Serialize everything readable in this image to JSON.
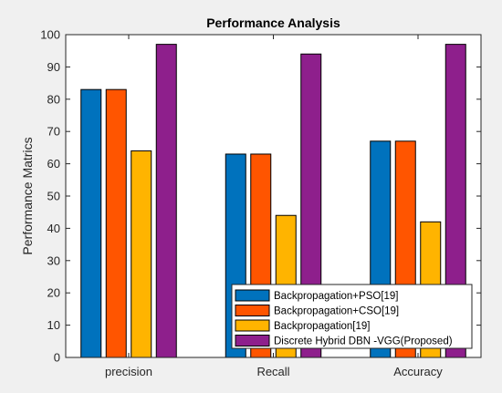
{
  "chart_data": {
    "type": "bar",
    "title": "Performance Analysis",
    "xlabel": "",
    "ylabel": "Performance Matrics",
    "categories": [
      "precision",
      "Recall",
      "Accuracy"
    ],
    "ylim": [
      0,
      100
    ],
    "yticks": [
      0,
      10,
      20,
      30,
      40,
      50,
      60,
      70,
      80,
      90,
      100
    ],
    "grid": false,
    "legend_position": "bottom-right",
    "series": [
      {
        "name": "Backpropagation+PSO[19]",
        "color": "#0072bd",
        "values": [
          83,
          63,
          67
        ]
      },
      {
        "name": "Backpropagation+CSO[19]",
        "color": "#ff5500",
        "values": [
          83,
          63,
          67
        ]
      },
      {
        "name": "Backpropagation[19]",
        "color": "#ffb400",
        "values": [
          64,
          44,
          42
        ]
      },
      {
        "name": "Discrete Hybrid DBN -VGG(Proposed)",
        "color": "#8e1f8c",
        "values": [
          97,
          94,
          97
        ]
      }
    ]
  }
}
